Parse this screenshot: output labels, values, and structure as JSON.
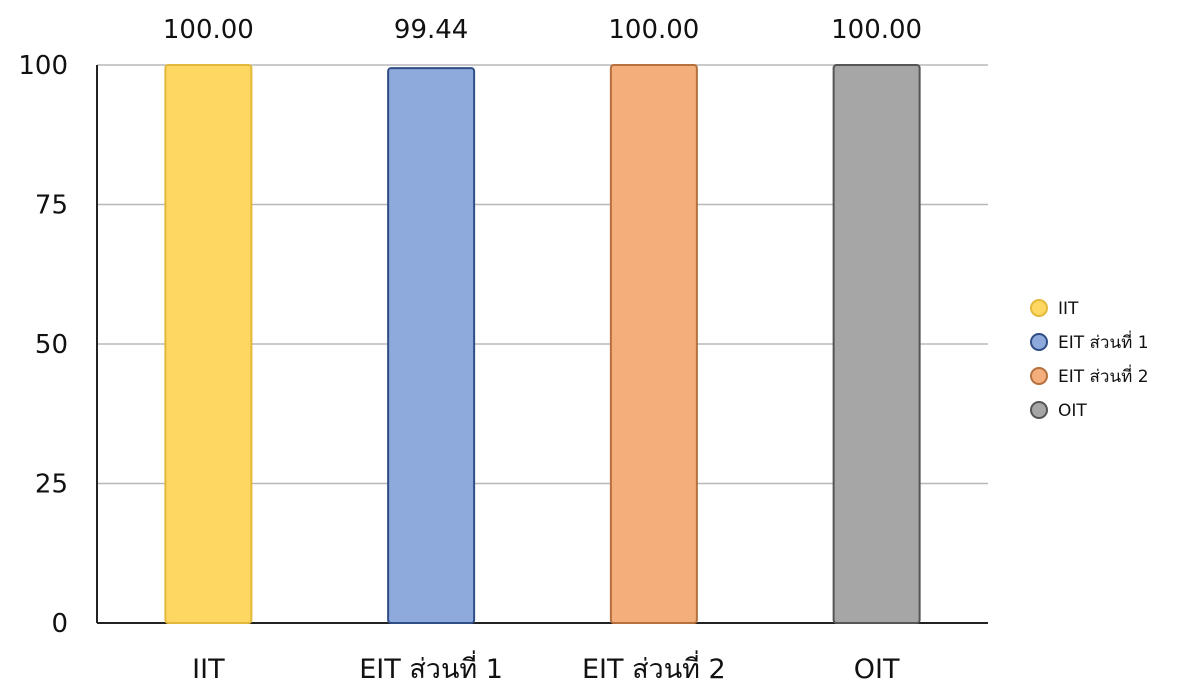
{
  "chart_data": {
    "type": "bar",
    "categories": [
      "IIT",
      "EIT ส่วนที่ 1",
      "EIT ส่วนที่ 2",
      "OIT"
    ],
    "values": [
      100.0,
      99.44,
      100.0,
      100.0
    ],
    "value_labels": [
      "100.00",
      "99.44",
      "100.00",
      "100.00"
    ],
    "colors": [
      "#FDD762",
      "#8EA9DB",
      "#F4AE7C",
      "#A6A6A6"
    ],
    "border_colors": [
      "#E2B93B",
      "#2F4E86",
      "#B5703D",
      "#555555"
    ],
    "ylim": [
      0,
      100
    ],
    "yticks": [
      0,
      25,
      50,
      75,
      100
    ],
    "ytick_labels": [
      "0",
      "25",
      "50",
      "75",
      "100"
    ],
    "grid": true,
    "legend": {
      "placement": "right",
      "entries": [
        "IIT",
        "EIT ส่วนที่ 1",
        "EIT ส่วนที่ 2",
        "OIT"
      ]
    },
    "title": "",
    "xlabel": "",
    "ylabel": ""
  }
}
